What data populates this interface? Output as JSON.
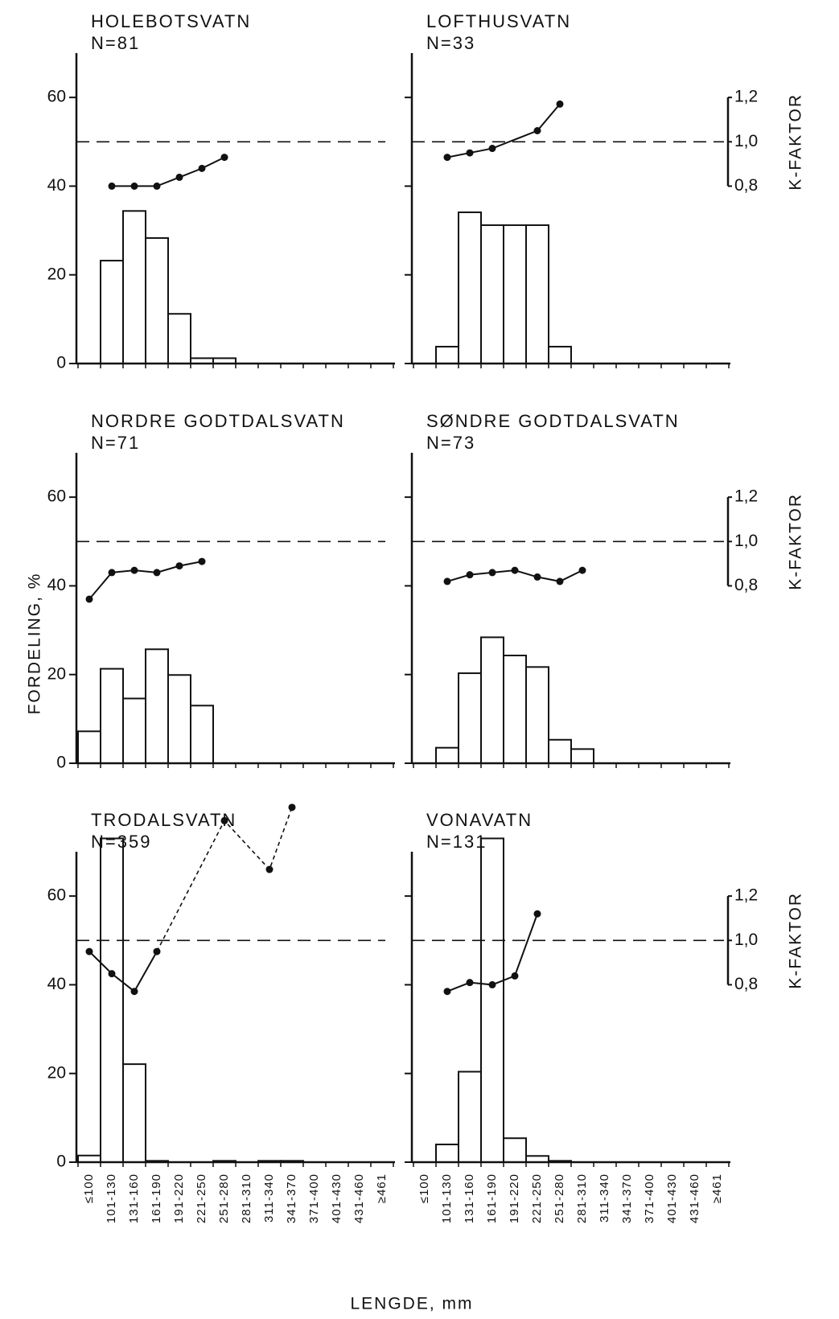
{
  "chart_data": [
    {
      "type": "bar",
      "title": "HOLEBOTSVATN",
      "subtitle": "N=81",
      "color": "#111111",
      "values": [
        0,
        23.2,
        34.4,
        28.3,
        11.2,
        1.2,
        1.2,
        0,
        0,
        0,
        0,
        0,
        0,
        0
      ],
      "k_values": [
        null,
        0.8,
        0.8,
        0.8,
        0.84,
        0.88,
        0.93,
        null,
        null,
        null,
        null,
        null,
        null,
        null
      ],
      "k_style": "solid",
      "k_reference": 1.0,
      "ylim": [
        0,
        70
      ],
      "yticks": [
        0,
        20,
        40,
        60
      ],
      "y2lim": [
        0,
        1.4
      ]
    },
    {
      "type": "bar",
      "title": "LOFTHUSVATN",
      "subtitle": "N=33",
      "color": "#111111",
      "values": [
        0,
        3.8,
        34.1,
        31.2,
        31.2,
        31.2,
        3.8,
        0,
        0,
        0,
        0,
        0,
        0,
        0
      ],
      "k_values": [
        null,
        0.93,
        0.95,
        0.97,
        null,
        1.05,
        1.17,
        null,
        null,
        null,
        null,
        null,
        null,
        null
      ],
      "k_style": "solid",
      "k_reference": 1.0,
      "ylim": [
        0,
        70
      ],
      "yticks": [
        0,
        20,
        40,
        60
      ],
      "y2lim": [
        0,
        1.4
      ],
      "y2ticks": [
        {
          "value": 0.8,
          "label": "0,8"
        },
        {
          "value": 1.0,
          "label": "1,0"
        },
        {
          "value": 1.2,
          "label": "1,2"
        }
      ]
    },
    {
      "type": "bar",
      "title": "NORDRE GODTDALSVATN",
      "subtitle": "N=71",
      "color": "#111111",
      "values": [
        7.2,
        21.3,
        14.6,
        25.7,
        19.9,
        13.0,
        0,
        0,
        0,
        0,
        0,
        0,
        0,
        0
      ],
      "k_values": [
        0.74,
        0.86,
        0.87,
        0.86,
        0.89,
        0.91,
        null,
        null,
        null,
        null,
        null,
        null,
        null,
        null
      ],
      "k_style": "solid",
      "k_reference": 1.0,
      "ylim": [
        0,
        70
      ],
      "yticks": [
        0,
        20,
        40,
        60
      ],
      "y2lim": [
        0,
        1.4
      ]
    },
    {
      "type": "bar",
      "title": "SØNDRE GODTDALSVATN",
      "subtitle": "N=73",
      "color": "#111111",
      "values": [
        0,
        3.5,
        20.3,
        28.4,
        24.3,
        21.7,
        5.3,
        3.2,
        0,
        0,
        0,
        0,
        0,
        0
      ],
      "k_values": [
        null,
        0.82,
        0.85,
        0.86,
        0.87,
        0.84,
        0.82,
        0.87,
        null,
        null,
        null,
        null,
        null,
        null
      ],
      "k_style": "solid",
      "k_reference": 1.0,
      "ylim": [
        0,
        70
      ],
      "yticks": [
        0,
        20,
        40,
        60
      ],
      "y2lim": [
        0,
        1.4
      ],
      "y2ticks": [
        {
          "value": 0.8,
          "label": "0,8"
        },
        {
          "value": 1.0,
          "label": "1,0"
        },
        {
          "value": 1.2,
          "label": "1,2"
        }
      ]
    },
    {
      "type": "bar",
      "title": "TRODALSVATN",
      "subtitle": "N=359",
      "color": "#111111",
      "categories": [
        "≤100",
        "101-130",
        "131-160",
        "161-190",
        "191-220",
        "221-250",
        "251-280",
        "281-310",
        "311-340",
        "341-370",
        "371-400",
        "401-430",
        "431-460",
        "≥461"
      ],
      "values": [
        1.5,
        73.0,
        22.1,
        0.3,
        0,
        0,
        0.3,
        0,
        0.3,
        0.3,
        0,
        0,
        0,
        0
      ],
      "k_values": [
        0.95,
        0.85,
        0.77,
        0.95,
        null,
        null,
        1.54,
        null,
        1.32,
        1.6,
        null,
        null,
        null,
        null
      ],
      "k_style": [
        "solid",
        "solid",
        "solid",
        "solid",
        null,
        null,
        "dashed",
        null,
        "dashed",
        "dashed",
        null,
        null,
        null,
        null
      ],
      "k_reference": 1.0,
      "ylim": [
        0,
        70
      ],
      "yticks": [
        0,
        20,
        40,
        60
      ],
      "y2lim": [
        0,
        1.4
      ]
    },
    {
      "type": "bar",
      "title": "VONAVATN",
      "subtitle": "N=131",
      "color": "#111111",
      "categories": [
        "≤100",
        "101-130",
        "131-160",
        "161-190",
        "191-220",
        "221-250",
        "251-280",
        "281-310",
        "311-340",
        "341-370",
        "371-400",
        "401-430",
        "431-460",
        "≥461"
      ],
      "values": [
        0,
        4.0,
        20.4,
        73.0,
        5.4,
        1.4,
        0.3,
        0,
        0,
        0,
        0,
        0,
        0,
        0
      ],
      "k_values": [
        null,
        0.77,
        0.81,
        0.8,
        0.84,
        1.12,
        null,
        null,
        null,
        null,
        null,
        null,
        null,
        null
      ],
      "k_style": "solid",
      "k_reference": 1.0,
      "ylim": [
        0,
        70
      ],
      "yticks": [
        0,
        20,
        40,
        60
      ],
      "y2lim": [
        0,
        1.4
      ],
      "y2ticks": [
        {
          "value": 0.8,
          "label": "0,8"
        },
        {
          "value": 1.0,
          "label": "1,0"
        },
        {
          "value": 1.2,
          "label": "1,2"
        }
      ]
    }
  ],
  "y_label": "FORDELING, %",
  "x_label": "LENGDE, mm",
  "y2_label": "K-FAKTOR"
}
